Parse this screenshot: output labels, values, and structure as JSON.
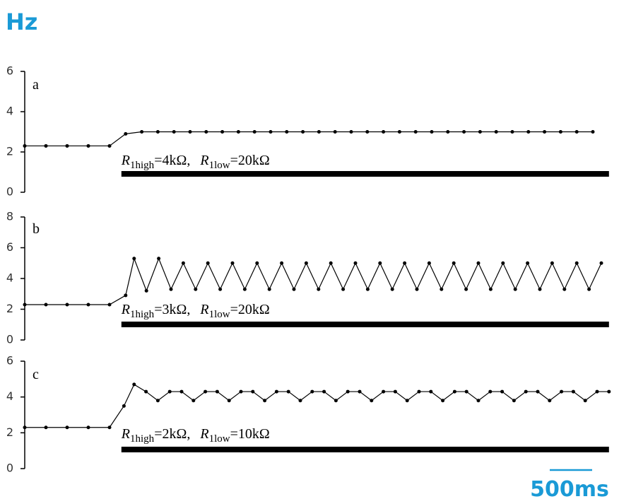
{
  "ylabel": "Hz",
  "scale_bar": {
    "value": 500,
    "label": "500ms",
    "color": "#1a9ad6"
  },
  "chart_data": [
    {
      "type": "line",
      "label": "a",
      "color": "#000000",
      "annotation": [
        "R",
        "1high",
        "=4kΩ,",
        "R",
        "1low",
        "=20kΩ"
      ],
      "xlim": [
        0,
        6900
      ],
      "ylim": [
        0,
        6
      ],
      "yticks": [
        0,
        2,
        4,
        6
      ],
      "stimulus": [
        1140,
        6890
      ],
      "x": [
        0,
        250,
        500,
        750,
        1000,
        1190,
        1380,
        1570,
        1760,
        1950,
        2140,
        2330,
        2520,
        2710,
        2900,
        3090,
        3280,
        3470,
        3660,
        3850,
        4040,
        4230,
        4420,
        4610,
        4800,
        4990,
        5180,
        5370,
        5560,
        5750,
        5940,
        6130,
        6320,
        6510,
        6700
      ],
      "values": [
        2.3,
        2.3,
        2.3,
        2.3,
        2.3,
        2.9,
        3.0,
        3.0,
        3.0,
        3.0,
        3.0,
        3.0,
        3.0,
        3.0,
        3.0,
        3.0,
        3.0,
        3.0,
        3.0,
        3.0,
        3.0,
        3.0,
        3.0,
        3.0,
        3.0,
        3.0,
        3.0,
        3.0,
        3.0,
        3.0,
        3.0,
        3.0,
        3.0,
        3.0,
        3.0
      ]
    },
    {
      "type": "line",
      "label": "b",
      "color": "#000000",
      "annotation": [
        "R",
        "1high",
        "=3kΩ,",
        "R",
        "1low",
        "=20kΩ"
      ],
      "xlim": [
        0,
        6900
      ],
      "ylim": [
        0,
        8
      ],
      "yticks": [
        0,
        2,
        4,
        6,
        8
      ],
      "stimulus": [
        1140,
        6890
      ],
      "x": [
        0,
        250,
        500,
        750,
        1000,
        1190,
        1290,
        1435,
        1580,
        1725,
        1870,
        2015,
        2160,
        2305,
        2450,
        2595,
        2740,
        2885,
        3030,
        3175,
        3320,
        3465,
        3610,
        3755,
        3900,
        4045,
        4190,
        4335,
        4480,
        4625,
        4770,
        4915,
        5060,
        5205,
        5350,
        5495,
        5640,
        5785,
        5930,
        6075,
        6220,
        6365,
        6510,
        6655,
        6800
      ],
      "values": [
        2.3,
        2.3,
        2.3,
        2.3,
        2.3,
        2.9,
        5.3,
        3.2,
        5.3,
        3.3,
        5.0,
        3.3,
        5.0,
        3.3,
        5.0,
        3.3,
        5.0,
        3.3,
        5.0,
        3.3,
        5.0,
        3.3,
        5.0,
        3.3,
        5.0,
        3.3,
        5.0,
        3.3,
        5.0,
        3.3,
        5.0,
        3.3,
        5.0,
        3.3,
        5.0,
        3.3,
        5.0,
        3.3,
        5.0,
        3.3,
        5.0,
        3.3,
        5.0,
        3.3,
        5.0
      ]
    },
    {
      "type": "line",
      "label": "c",
      "color": "#000000",
      "annotation": [
        "R",
        "1high",
        "=2kΩ,",
        "R",
        "1low",
        "=10kΩ"
      ],
      "xlim": [
        0,
        6900
      ],
      "ylim": [
        0,
        6
      ],
      "yticks": [
        0,
        2,
        4,
        6
      ],
      "stimulus": [
        1140,
        6890
      ],
      "x": [
        0,
        250,
        500,
        750,
        1000,
        1170,
        1290,
        1430,
        1570,
        1710,
        1850,
        1990,
        2130,
        2270,
        2410,
        2550,
        2690,
        2830,
        2970,
        3110,
        3250,
        3390,
        3530,
        3670,
        3810,
        3950,
        4090,
        4230,
        4370,
        4510,
        4650,
        4790,
        4930,
        5070,
        5210,
        5350,
        5490,
        5630,
        5770,
        5910,
        6050,
        6190,
        6330,
        6470,
        6610,
        6750,
        6890
      ],
      "values": [
        2.3,
        2.3,
        2.3,
        2.3,
        2.3,
        3.5,
        4.7,
        4.3,
        3.8,
        4.3,
        4.3,
        3.8,
        4.3,
        4.3,
        3.8,
        4.3,
        4.3,
        3.8,
        4.3,
        4.3,
        3.8,
        4.3,
        4.3,
        3.8,
        4.3,
        4.3,
        3.8,
        4.3,
        4.3,
        3.8,
        4.3,
        4.3,
        3.8,
        4.3,
        4.3,
        3.8,
        4.3,
        4.3,
        3.8,
        4.3,
        4.3,
        3.8,
        4.3,
        4.3,
        3.8,
        4.3,
        4.3
      ]
    }
  ]
}
